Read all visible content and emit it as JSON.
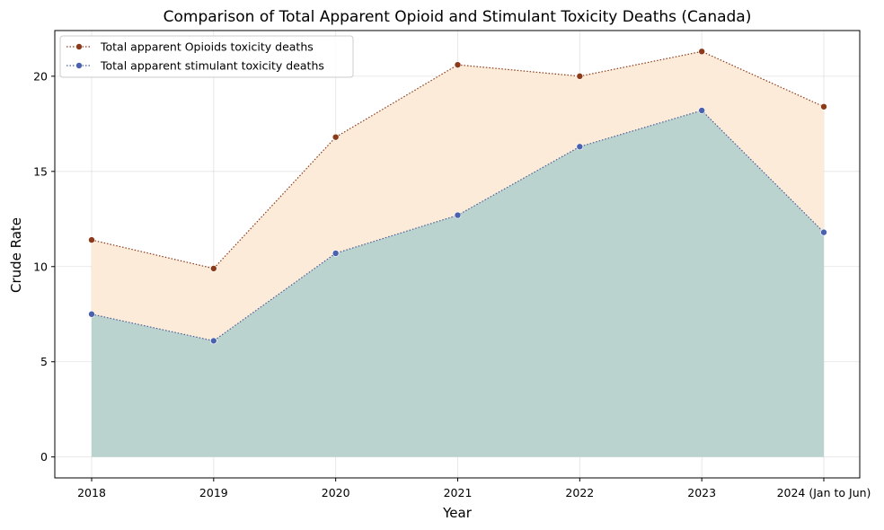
{
  "chart_data": {
    "type": "area",
    "title": "Comparison of Total Apparent Opioid and Stimulant Toxicity Deaths (Canada)",
    "xlabel": "Year",
    "ylabel": "Crude Rate",
    "categories": [
      "2018",
      "2019",
      "2020",
      "2021",
      "2022",
      "2023",
      "2024 (Jan to Jun)"
    ],
    "ylim": [
      -1.1,
      22.4
    ],
    "yticks": [
      0,
      5,
      10,
      15,
      20
    ],
    "grid": true,
    "legend_position": "top-left",
    "series": [
      {
        "name": "Total apparent Opioids toxicity deaths",
        "values": [
          11.4,
          9.9,
          16.8,
          20.6,
          20.0,
          21.3,
          18.4
        ],
        "line_color": "#8b3a1a",
        "marker_color": "#8b3a1a",
        "fill_color": "#fcebd8"
      },
      {
        "name": "Total apparent stimulant toxicity deaths",
        "values": [
          7.5,
          6.1,
          10.7,
          12.7,
          16.3,
          18.2,
          11.8
        ],
        "line_color": "#4a5f99",
        "marker_color": "#4a62ad",
        "fill_color": "#bbd3cf"
      }
    ]
  }
}
